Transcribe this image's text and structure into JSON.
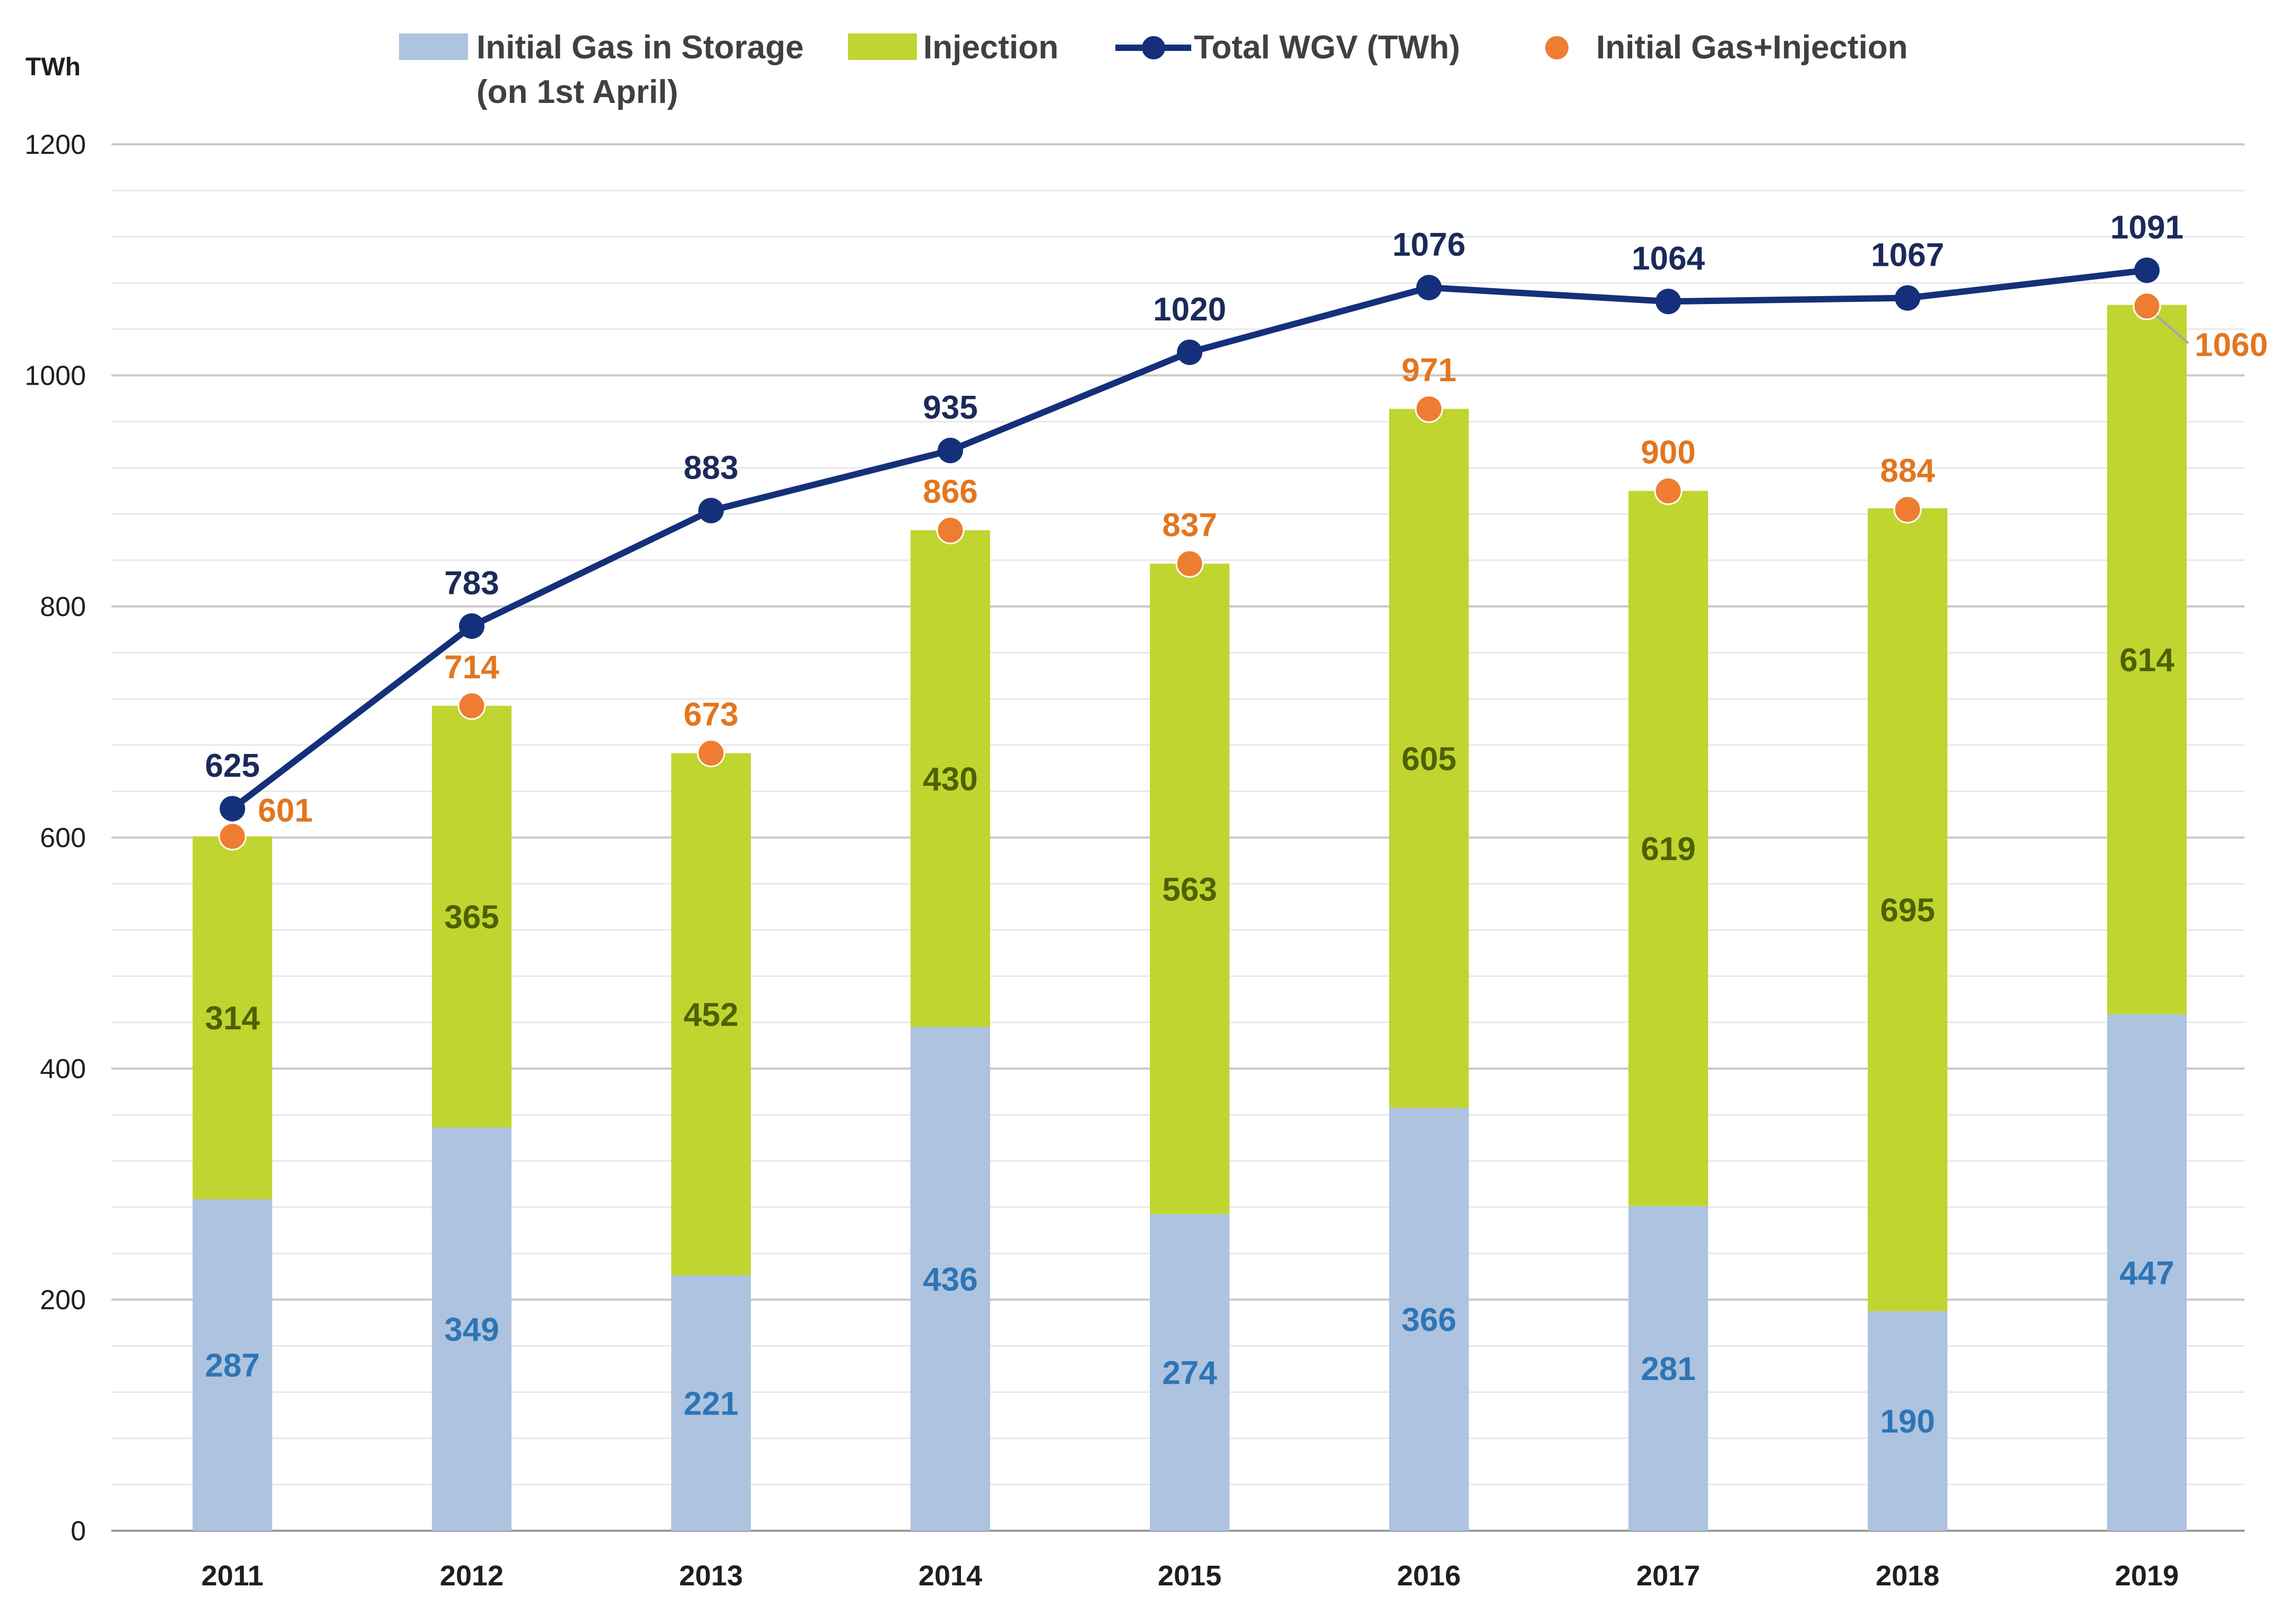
{
  "chart_data": {
    "type": "bar",
    "stacked": true,
    "unit": "TWh",
    "categories": [
      "2011",
      "2012",
      "2013",
      "2014",
      "2015",
      "2016",
      "2017",
      "2018",
      "2019"
    ],
    "series": [
      {
        "name": "Initial Gas in Storage",
        "name_line2": "(on 1st April)",
        "kind": "bar",
        "color": "#adc3e0",
        "label_color": "#2e75b6",
        "values": [
          287,
          349,
          221,
          436,
          274,
          366,
          281,
          190,
          447
        ]
      },
      {
        "name": "Injection",
        "kind": "bar",
        "color": "#c0d530",
        "label_color": "#4d6100",
        "values": [
          314,
          365,
          452,
          430,
          563,
          605,
          619,
          695,
          614
        ]
      },
      {
        "name": "Total WGV (TWh)",
        "kind": "line",
        "color": "#15307a",
        "label_color": "#1b2a5a",
        "values": [
          625,
          783,
          883,
          935,
          1020,
          1076,
          1064,
          1067,
          1091
        ]
      },
      {
        "name": "Initial Gas+Injection",
        "kind": "scatter",
        "color": "#ee7d31",
        "label_color": "#e2761f",
        "values": [
          601,
          714,
          673,
          866,
          837,
          971,
          900,
          884,
          1060
        ]
      }
    ],
    "ylim": [
      0,
      1200
    ],
    "yticks": [
      0,
      200,
      400,
      600,
      800,
      1000,
      1200
    ],
    "minor_grid_step": 40,
    "legend_position": "top",
    "gridlines": true
  }
}
